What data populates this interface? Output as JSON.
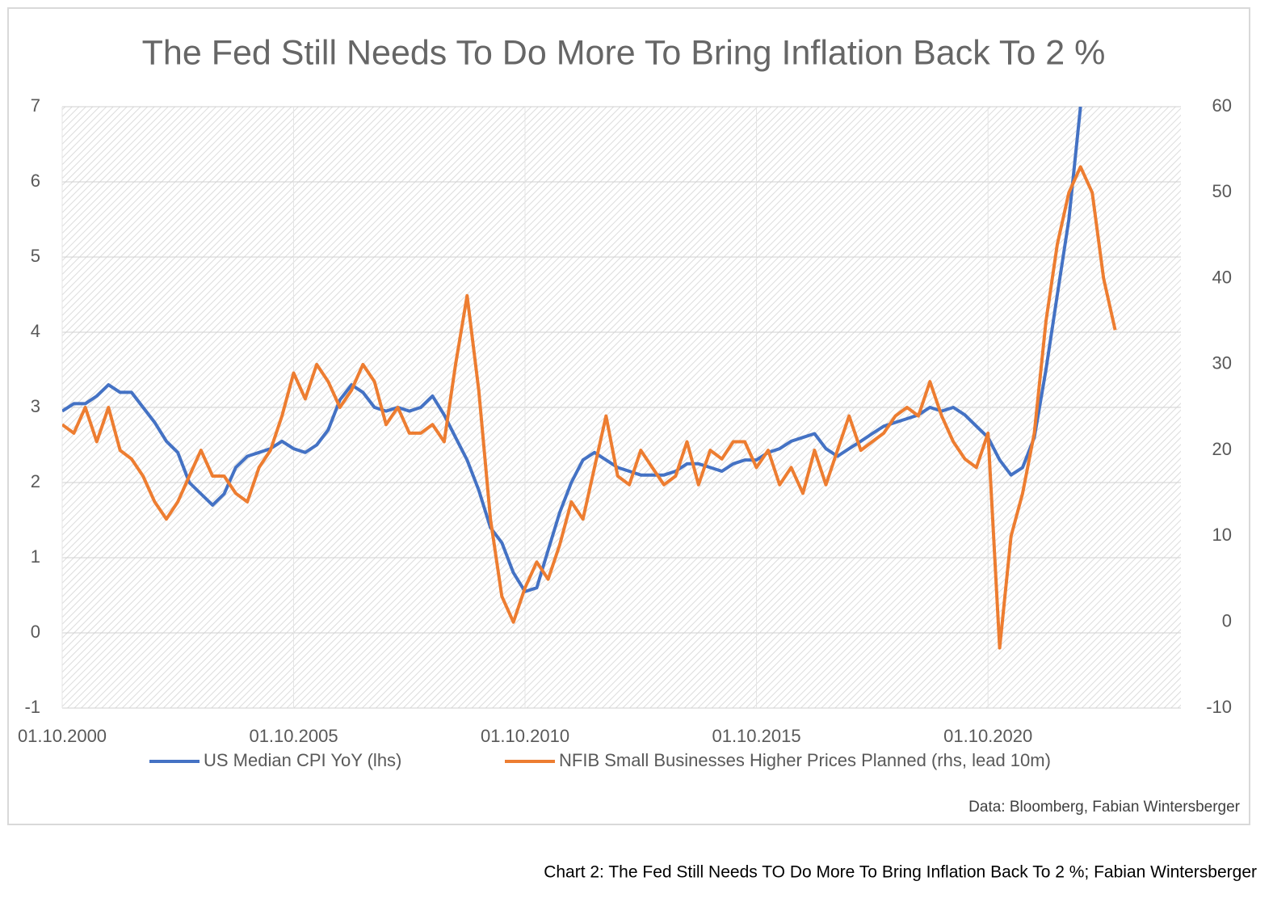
{
  "chart_data": {
    "type": "line",
    "title": "The Fed Still Needs To Do More To Bring Inflation Back To 2 %",
    "source": "Data: Bloomberg, Fabian Wintersberger",
    "caption": "Chart 2: The Fed Still Needs TO Do More To Bring Inflation Back To 2 %; Fabian Wintersberger",
    "x": [
      "01.10.2000",
      "01.01.2001",
      "01.04.2001",
      "01.07.2001",
      "01.10.2001",
      "01.01.2002",
      "01.04.2002",
      "01.07.2002",
      "01.10.2002",
      "01.01.2003",
      "01.04.2003",
      "01.07.2003",
      "01.10.2003",
      "01.01.2004",
      "01.04.2004",
      "01.07.2004",
      "01.10.2004",
      "01.01.2005",
      "01.04.2005",
      "01.07.2005",
      "01.10.2005",
      "01.01.2006",
      "01.04.2006",
      "01.07.2006",
      "01.10.2006",
      "01.01.2007",
      "01.04.2007",
      "01.07.2007",
      "01.10.2007",
      "01.01.2008",
      "01.04.2008",
      "01.07.2008",
      "01.10.2008",
      "01.01.2009",
      "01.04.2009",
      "01.07.2009",
      "01.10.2009",
      "01.01.2010",
      "01.04.2010",
      "01.07.2010",
      "01.10.2010",
      "01.01.2011",
      "01.04.2011",
      "01.07.2011",
      "01.10.2011",
      "01.01.2012",
      "01.04.2012",
      "01.07.2012",
      "01.10.2012",
      "01.01.2013",
      "01.04.2013",
      "01.07.2013",
      "01.10.2013",
      "01.01.2014",
      "01.04.2014",
      "01.07.2014",
      "01.10.2014",
      "01.01.2015",
      "01.04.2015",
      "01.07.2015",
      "01.10.2015",
      "01.01.2016",
      "01.04.2016",
      "01.07.2016",
      "01.10.2016",
      "01.01.2017",
      "01.04.2017",
      "01.07.2017",
      "01.10.2017",
      "01.01.2018",
      "01.04.2018",
      "01.07.2018",
      "01.10.2018",
      "01.01.2019",
      "01.04.2019",
      "01.07.2019",
      "01.10.2019",
      "01.01.2020",
      "01.04.2020",
      "01.07.2020",
      "01.10.2020",
      "01.01.2021",
      "01.04.2021",
      "01.07.2021",
      "01.10.2021",
      "01.01.2022",
      "01.04.2022",
      "01.07.2022",
      "01.10.2022",
      "01.01.2023",
      "01.04.2023",
      "01.07.2023"
    ],
    "series": [
      {
        "name": "US Median CPI YoY (lhs)",
        "color": "#4472c4",
        "axis": "y",
        "values": [
          2.95,
          3.05,
          3.05,
          3.15,
          3.3,
          3.2,
          3.2,
          3.0,
          2.8,
          2.55,
          2.4,
          2.0,
          1.85,
          1.7,
          1.85,
          2.2,
          2.35,
          2.4,
          2.45,
          2.55,
          2.45,
          2.4,
          2.5,
          2.7,
          3.1,
          3.3,
          3.2,
          3.0,
          2.95,
          3.0,
          2.95,
          3.0,
          3.15,
          2.9,
          2.6,
          2.3,
          1.9,
          1.4,
          1.2,
          0.8,
          0.55,
          0.6,
          1.1,
          1.6,
          2.0,
          2.3,
          2.4,
          2.3,
          2.2,
          2.15,
          2.1,
          2.1,
          2.1,
          2.15,
          2.25,
          2.25,
          2.2,
          2.15,
          2.25,
          2.3,
          2.3,
          2.4,
          2.45,
          2.55,
          2.6,
          2.65,
          2.45,
          2.35,
          2.45,
          2.55,
          2.65,
          2.75,
          2.8,
          2.85,
          2.9,
          3.0,
          2.95,
          3.0,
          2.9,
          2.75,
          2.6,
          2.3,
          2.1,
          2.2,
          2.6,
          3.5,
          4.5,
          5.5,
          7.0,
          null,
          null,
          null
        ]
      },
      {
        "name": "NFIB Small Businesses Higher Prices Planned (rhs, lead 10m)",
        "color": "#ed7d31",
        "axis": "y2",
        "values": [
          23,
          22,
          25,
          21,
          25,
          20,
          19,
          17,
          14,
          12,
          14,
          17,
          20,
          17,
          17,
          15,
          14,
          18,
          20,
          24,
          29,
          26,
          30,
          28,
          25,
          27,
          30,
          28,
          23,
          25,
          22,
          22,
          23,
          21,
          30,
          38,
          27,
          12,
          3,
          0,
          4,
          7,
          5,
          9,
          14,
          12,
          18,
          24,
          17,
          16,
          20,
          18,
          16,
          17,
          21,
          16,
          20,
          19,
          21,
          21,
          18,
          20,
          16,
          18,
          15,
          20,
          16,
          20,
          24,
          20,
          21,
          22,
          24,
          25,
          24,
          28,
          24,
          21,
          19,
          18,
          22,
          -3,
          10,
          15,
          22,
          35,
          44,
          50,
          53,
          50,
          40,
          34
        ]
      }
    ],
    "xlim": [
      "01.10.2000",
      "01.12.2024"
    ],
    "xticks": [
      "01.10.2000",
      "01.10.2005",
      "01.10.2010",
      "01.10.2015",
      "01.10.2020"
    ],
    "ylim": [
      -1,
      7
    ],
    "yticks": [
      -1,
      0,
      1,
      2,
      3,
      4,
      5,
      6,
      7
    ],
    "y2lim": [
      -10,
      60
    ],
    "y2ticks": [
      -10,
      0,
      10,
      20,
      30,
      40,
      50,
      60
    ],
    "grid": true,
    "legend": "bottom"
  }
}
